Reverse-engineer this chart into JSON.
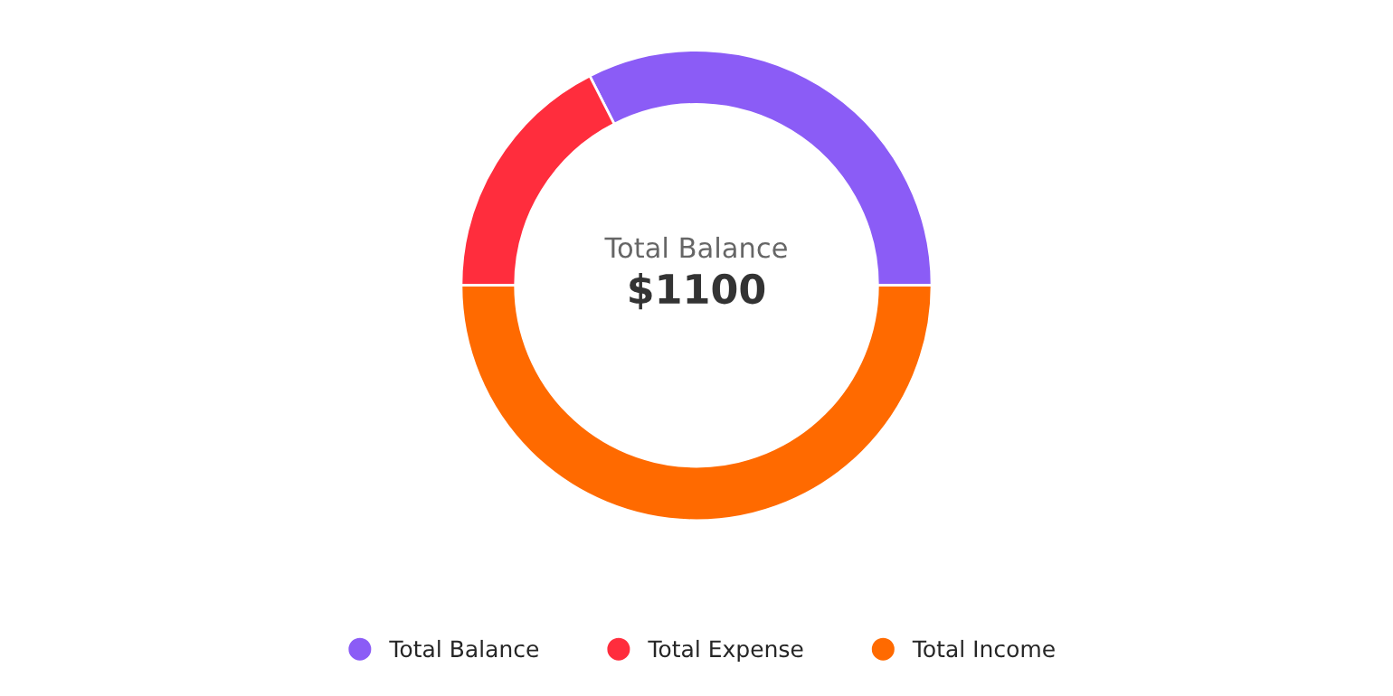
{
  "chart_data": {
    "type": "donut",
    "categories": [
      "Total Balance",
      "Total Expense",
      "Total Income"
    ],
    "values": [
      32.5,
      17.5,
      50
    ],
    "colors": [
      "#8b5cf6",
      "#ff2d3d",
      "#ff6a00"
    ],
    "annotations": [
      "Total Balance",
      "$1100"
    ],
    "legend": "bottom"
  }
}
